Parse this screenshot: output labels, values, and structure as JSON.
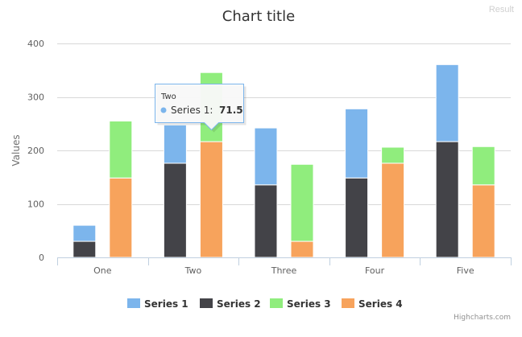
{
  "header": {
    "result_label": "Result"
  },
  "chart_data": {
    "type": "bar",
    "title": "Chart title",
    "ylabel": "Values",
    "xlabel": "",
    "categories": [
      "One",
      "Two",
      "Three",
      "Four",
      "Five"
    ],
    "ylim": [
      0,
      400
    ],
    "yticks": [
      0,
      100,
      200,
      300,
      400
    ],
    "stacks": [
      {
        "name": "stack-a",
        "series": [
          "Series 2",
          "Series 1"
        ]
      },
      {
        "name": "stack-b",
        "series": [
          "Series 4",
          "Series 3"
        ]
      }
    ],
    "series": [
      {
        "name": "Series 1",
        "color": "#7cb5ec",
        "values": [
          30,
          71.5,
          106.4,
          129.2,
          144
        ]
      },
      {
        "name": "Series 2",
        "color": "#434348",
        "values": [
          30,
          176,
          135.6,
          148.5,
          216.4
        ]
      },
      {
        "name": "Series 3",
        "color": "#90ed7d",
        "values": [
          106.4,
          129.2,
          144,
          30,
          71.5
        ]
      },
      {
        "name": "Series 4",
        "color": "#f7a35c",
        "values": [
          148.5,
          216.4,
          30,
          176,
          135.6
        ]
      }
    ],
    "grid": true,
    "legend": "bottom-center",
    "tooltip": {
      "category": "Two",
      "series": "Series 1",
      "series_label": "Series 1: ",
      "value": "71.5"
    },
    "credits": "Highcharts.com"
  }
}
